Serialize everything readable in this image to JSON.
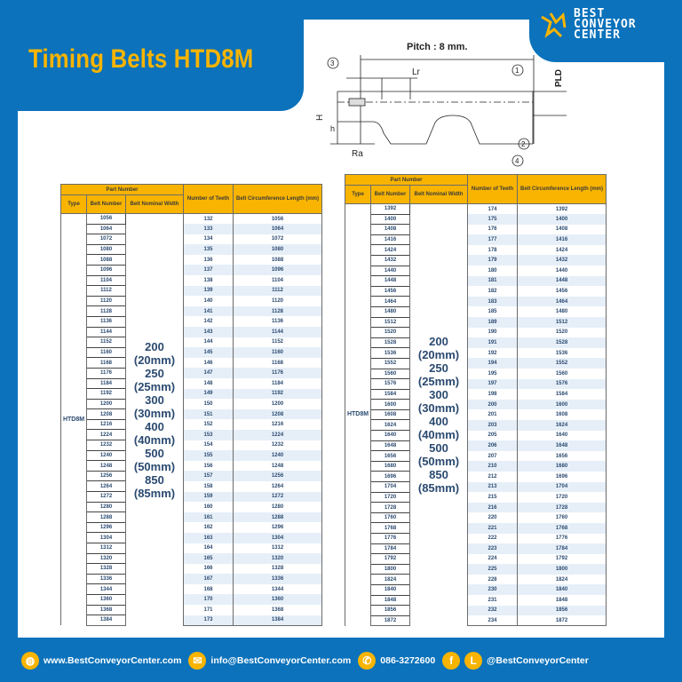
{
  "title": "Timing Belts HTD8M",
  "logo": {
    "line1": "BEST",
    "line2": "CONVEYOR",
    "line3": "CENTER"
  },
  "diagram": {
    "pitch": "Pitch : 8 mm.",
    "lr": "Lr",
    "pld": "PLD",
    "H": "H",
    "h": "h",
    "ra": "Ra",
    "c1": "1",
    "c2": "2",
    "c3": "3",
    "c4": "4"
  },
  "table_headers": {
    "part_number": "Part Number",
    "type": "Type",
    "belt_number": "Belt Number",
    "nominal_width": "Belt Nominal Width",
    "teeth": "Number of Teeth",
    "length": "Belt Circumference Length (mm)"
  },
  "type_value": "HTD8M",
  "widths": [
    "200",
    "(20mm)",
    "250",
    "(25mm)",
    "300",
    "(30mm)",
    "400",
    "(40mm)",
    "500",
    "(50mm)",
    "850",
    "(85mm)"
  ],
  "left_table": [
    [
      "1056",
      "132",
      "1056"
    ],
    [
      "1064",
      "133",
      "1064"
    ],
    [
      "1072",
      "134",
      "1072"
    ],
    [
      "1080",
      "135",
      "1080"
    ],
    [
      "1088",
      "136",
      "1088"
    ],
    [
      "1096",
      "137",
      "1096"
    ],
    [
      "1104",
      "138",
      "1104"
    ],
    [
      "1112",
      "139",
      "1112"
    ],
    [
      "1120",
      "140",
      "1120"
    ],
    [
      "1128",
      "141",
      "1128"
    ],
    [
      "1136",
      "142",
      "1136"
    ],
    [
      "1144",
      "143",
      "1144"
    ],
    [
      "1152",
      "144",
      "1152"
    ],
    [
      "1160",
      "145",
      "1160"
    ],
    [
      "1168",
      "146",
      "1168"
    ],
    [
      "1176",
      "147",
      "1176"
    ],
    [
      "1184",
      "148",
      "1184"
    ],
    [
      "1192",
      "149",
      "1192"
    ],
    [
      "1200",
      "150",
      "1200"
    ],
    [
      "1208",
      "151",
      "1208"
    ],
    [
      "1216",
      "152",
      "1216"
    ],
    [
      "1224",
      "153",
      "1224"
    ],
    [
      "1232",
      "154",
      "1232"
    ],
    [
      "1240",
      "155",
      "1240"
    ],
    [
      "1248",
      "156",
      "1248"
    ],
    [
      "1256",
      "157",
      "1256"
    ],
    [
      "1264",
      "158",
      "1264"
    ],
    [
      "1272",
      "159",
      "1272"
    ],
    [
      "1280",
      "160",
      "1280"
    ],
    [
      "1288",
      "161",
      "1288"
    ],
    [
      "1296",
      "162",
      "1296"
    ],
    [
      "1304",
      "163",
      "1304"
    ],
    [
      "1312",
      "164",
      "1312"
    ],
    [
      "1320",
      "165",
      "1320"
    ],
    [
      "1328",
      "166",
      "1328"
    ],
    [
      "1336",
      "167",
      "1336"
    ],
    [
      "1344",
      "168",
      "1344"
    ],
    [
      "1360",
      "170",
      "1360"
    ],
    [
      "1368",
      "171",
      "1368"
    ],
    [
      "1384",
      "173",
      "1384"
    ]
  ],
  "right_table": [
    [
      "1392",
      "174",
      "1392"
    ],
    [
      "1400",
      "175",
      "1400"
    ],
    [
      "1408",
      "176",
      "1408"
    ],
    [
      "1416",
      "177",
      "1416"
    ],
    [
      "1424",
      "178",
      "1424"
    ],
    [
      "1432",
      "179",
      "1432"
    ],
    [
      "1440",
      "180",
      "1440"
    ],
    [
      "1448",
      "181",
      "1448"
    ],
    [
      "1456",
      "182",
      "1456"
    ],
    [
      "1464",
      "183",
      "1464"
    ],
    [
      "1480",
      "185",
      "1480"
    ],
    [
      "1512",
      "189",
      "1512"
    ],
    [
      "1520",
      "190",
      "1520"
    ],
    [
      "1528",
      "191",
      "1528"
    ],
    [
      "1536",
      "192",
      "1536"
    ],
    [
      "1552",
      "194",
      "1552"
    ],
    [
      "1560",
      "195",
      "1560"
    ],
    [
      "1576",
      "197",
      "1576"
    ],
    [
      "1584",
      "198",
      "1584"
    ],
    [
      "1600",
      "200",
      "1600"
    ],
    [
      "1608",
      "201",
      "1608"
    ],
    [
      "1624",
      "203",
      "1624"
    ],
    [
      "1640",
      "205",
      "1640"
    ],
    [
      "1648",
      "206",
      "1648"
    ],
    [
      "1656",
      "207",
      "1656"
    ],
    [
      "1680",
      "210",
      "1680"
    ],
    [
      "1696",
      "212",
      "1696"
    ],
    [
      "1704",
      "213",
      "1704"
    ],
    [
      "1720",
      "215",
      "1720"
    ],
    [
      "1728",
      "216",
      "1728"
    ],
    [
      "1760",
      "220",
      "1760"
    ],
    [
      "1768",
      "221",
      "1768"
    ],
    [
      "1776",
      "222",
      "1776"
    ],
    [
      "1784",
      "223",
      "1784"
    ],
    [
      "1792",
      "224",
      "1792"
    ],
    [
      "1800",
      "225",
      "1800"
    ],
    [
      "1824",
      "228",
      "1824"
    ],
    [
      "1840",
      "230",
      "1840"
    ],
    [
      "1848",
      "231",
      "1848"
    ],
    [
      "1856",
      "232",
      "1856"
    ],
    [
      "1872",
      "234",
      "1872"
    ]
  ],
  "footer": {
    "website": "www.BestConveyorCenter.com",
    "email": "info@BestConveyorCenter.com",
    "phone": "086-3272600",
    "social": "@BestConveyorCenter",
    "fb": "f",
    "line": "L"
  },
  "colors": {
    "brand_blue": "#0b72bb",
    "accent_yellow": "#f8b400"
  }
}
